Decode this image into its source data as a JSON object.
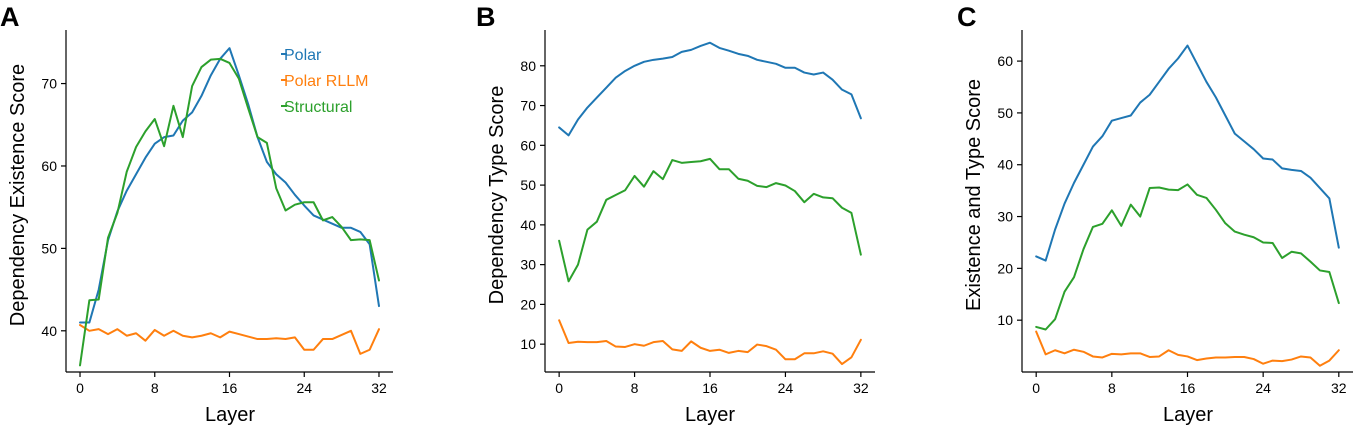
{
  "chart_data": [
    {
      "type": "line",
      "panel": "A",
      "title": "",
      "xlabel": "Layer",
      "ylabel": "Dependency Existence Score",
      "xlim": [
        -1.5,
        33.5
      ],
      "ylim": [
        35,
        76.5
      ],
      "xticks": [
        0,
        8,
        16,
        24,
        32
      ],
      "yticks": [
        40,
        50,
        60,
        70
      ],
      "legend": "top-right",
      "x": [
        0,
        1,
        2,
        3,
        4,
        5,
        6,
        7,
        8,
        9,
        10,
        11,
        12,
        13,
        14,
        15,
        16,
        17,
        18,
        19,
        20,
        21,
        22,
        23,
        24,
        25,
        26,
        27,
        28,
        29,
        30,
        31,
        32
      ],
      "series": [
        {
          "name": "Polar",
          "color": "#1f77b4",
          "values": [
            41.0,
            41.0,
            45.0,
            51.0,
            54.5,
            57.0,
            59.0,
            61.0,
            62.7,
            63.5,
            63.7,
            65.5,
            66.5,
            68.5,
            71.0,
            73.0,
            74.3,
            71.0,
            67.5,
            63.5,
            60.5,
            59.0,
            58.0,
            56.5,
            55.2,
            54.0,
            53.5,
            53.0,
            52.5,
            52.5,
            52.0,
            50.5,
            43.0
          ]
        },
        {
          "name": "Polar RLLM",
          "color": "#ff7f0e",
          "values": [
            40.7,
            40.0,
            40.2,
            39.6,
            40.2,
            39.4,
            39.7,
            38.8,
            40.1,
            39.4,
            40.0,
            39.4,
            39.2,
            39.4,
            39.7,
            39.2,
            39.9,
            39.6,
            39.3,
            39.0,
            39.0,
            39.1,
            39.0,
            39.2,
            37.7,
            37.7,
            39.0,
            39.0,
            39.5,
            40.0,
            37.2,
            37.7,
            40.2
          ]
        },
        {
          "name": "Structural",
          "color": "#2ca02c",
          "values": [
            35.8,
            43.7,
            43.8,
            51.3,
            54.3,
            59.3,
            62.3,
            64.2,
            65.7,
            62.4,
            67.3,
            63.5,
            69.7,
            72.0,
            72.9,
            73.0,
            72.5,
            70.6,
            67.0,
            63.5,
            62.8,
            57.3,
            54.6,
            55.3,
            55.6,
            55.6,
            53.4,
            53.8,
            52.6,
            51.0,
            51.1,
            51.0,
            46.1
          ]
        }
      ]
    },
    {
      "type": "line",
      "panel": "B",
      "title": "",
      "xlabel": "Layer",
      "ylabel": "Dependency Type Score",
      "xlim": [
        -1.5,
        33.5
      ],
      "ylim": [
        3,
        89
      ],
      "xticks": [
        0,
        8,
        16,
        24,
        32
      ],
      "yticks": [
        10,
        20,
        30,
        40,
        50,
        60,
        70,
        80
      ],
      "x": [
        0,
        1,
        2,
        3,
        4,
        5,
        6,
        7,
        8,
        9,
        10,
        11,
        12,
        13,
        14,
        15,
        16,
        17,
        18,
        19,
        20,
        21,
        22,
        23,
        24,
        25,
        26,
        27,
        28,
        29,
        30,
        31,
        32
      ],
      "series": [
        {
          "name": "Polar",
          "color": "#1f77b4",
          "values": [
            64.5,
            62.5,
            66.5,
            69.5,
            72.0,
            74.5,
            77.0,
            78.7,
            80.0,
            81.0,
            81.5,
            81.8,
            82.2,
            83.5,
            84.0,
            85.0,
            85.8,
            84.5,
            83.8,
            83.0,
            82.5,
            81.5,
            81.0,
            80.5,
            79.5,
            79.5,
            78.3,
            77.8,
            78.3,
            76.5,
            74.0,
            72.8,
            66.8
          ]
        },
        {
          "name": "Polar RLLM",
          "color": "#ff7f0e",
          "values": [
            16.0,
            10.3,
            10.6,
            10.5,
            10.5,
            10.8,
            9.4,
            9.3,
            10.0,
            9.6,
            10.5,
            10.8,
            8.7,
            8.3,
            10.7,
            9.1,
            8.3,
            8.6,
            7.8,
            8.3,
            8.0,
            9.9,
            9.5,
            8.6,
            6.2,
            6.2,
            7.7,
            7.7,
            8.2,
            7.6,
            5.0,
            6.7,
            11.1
          ]
        },
        {
          "name": "Structural",
          "color": "#2ca02c",
          "values": [
            36.0,
            25.8,
            30.0,
            38.8,
            40.8,
            46.3,
            47.5,
            48.7,
            52.3,
            49.6,
            53.5,
            51.5,
            56.3,
            55.6,
            55.8,
            56.0,
            56.6,
            54.0,
            54.0,
            51.6,
            51.1,
            49.8,
            49.5,
            50.5,
            49.9,
            48.5,
            45.7,
            47.8,
            46.9,
            46.7,
            44.3,
            43.0,
            32.5
          ]
        }
      ]
    },
    {
      "type": "line",
      "panel": "C",
      "title": "",
      "xlabel": "Layer",
      "ylabel": "Existence and Type Score",
      "xlim": [
        -1.5,
        33.5
      ],
      "ylim": [
        0,
        66
      ],
      "xticks": [
        0,
        8,
        16,
        24,
        32
      ],
      "yticks": [
        10,
        20,
        30,
        40,
        50,
        60
      ],
      "x": [
        0,
        1,
        2,
        3,
        4,
        5,
        6,
        7,
        8,
        9,
        10,
        11,
        12,
        13,
        14,
        15,
        16,
        17,
        18,
        19,
        20,
        21,
        22,
        23,
        24,
        25,
        26,
        27,
        28,
        29,
        30,
        31,
        32
      ],
      "series": [
        {
          "name": "Polar",
          "color": "#1f77b4",
          "values": [
            22.3,
            21.5,
            27.5,
            32.5,
            36.5,
            40.0,
            43.5,
            45.5,
            48.5,
            49.0,
            49.5,
            52.0,
            53.5,
            56.0,
            58.5,
            60.5,
            63.0,
            59.5,
            56.0,
            53.0,
            49.5,
            46.0,
            44.5,
            43.0,
            41.2,
            41.0,
            39.3,
            39.0,
            38.8,
            37.5,
            35.5,
            33.5,
            24.0
          ]
        },
        {
          "name": "Polar RLLM",
          "color": "#ff7f0e",
          "values": [
            7.8,
            3.4,
            4.2,
            3.6,
            4.3,
            3.9,
            3.0,
            2.8,
            3.5,
            3.4,
            3.6,
            3.6,
            2.9,
            3.0,
            4.2,
            3.3,
            3.0,
            2.3,
            2.6,
            2.8,
            2.8,
            2.9,
            2.9,
            2.5,
            1.6,
            2.2,
            2.1,
            2.4,
            3.0,
            2.8,
            1.2,
            2.2,
            4.2
          ]
        },
        {
          "name": "Structural",
          "color": "#2ca02c",
          "values": [
            8.7,
            8.2,
            10.2,
            15.5,
            18.3,
            23.7,
            28.0,
            28.6,
            31.2,
            28.2,
            32.3,
            30.0,
            35.5,
            35.6,
            35.2,
            35.1,
            36.2,
            34.2,
            33.6,
            31.3,
            28.7,
            27.1,
            26.5,
            26.0,
            25.0,
            24.9,
            22.0,
            23.2,
            22.9,
            21.3,
            19.6,
            19.3,
            13.3
          ]
        }
      ]
    }
  ]
}
